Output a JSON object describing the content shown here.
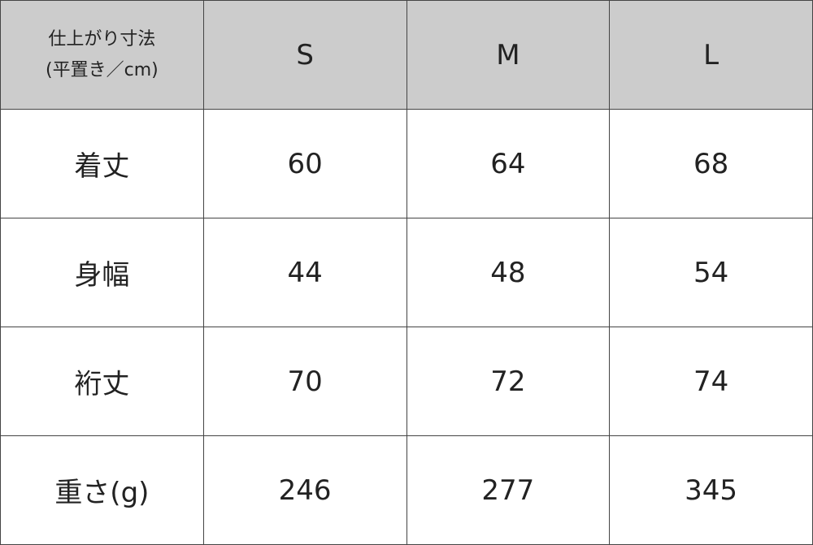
{
  "header": {
    "corner_line1": "仕上がり寸法",
    "corner_line2": "(平置き／cm)",
    "sizes": [
      "S",
      "M",
      "L"
    ]
  },
  "rows": [
    {
      "label": "着丈",
      "values": [
        "60",
        "64",
        "68"
      ]
    },
    {
      "label": "身幅",
      "values": [
        "44",
        "48",
        "54"
      ]
    },
    {
      "label": "裄丈",
      "values": [
        "70",
        "72",
        "74"
      ]
    },
    {
      "label": "重さ(g)",
      "values": [
        "246",
        "277",
        "345"
      ]
    }
  ],
  "colors": {
    "header_bg": "#cccccc",
    "label_bg": "#e6e6e6",
    "border": "#444444"
  }
}
